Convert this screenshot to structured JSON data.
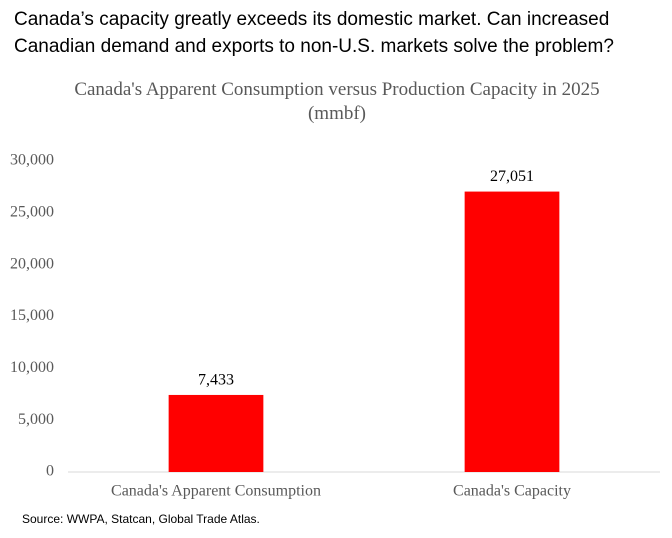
{
  "headline": "Canada’s capacity greatly exceeds its domestic market.  Can increased Canadian demand and exports to non-U.S. markets solve the problem?",
  "source": "Source:  WWPA, Statcan, Global Trade Atlas.",
  "chart_data": {
    "type": "bar",
    "title": "Canada's Apparent Consumption versus Production Capacity in 2025",
    "subtitle": "(mmbf)",
    "categories": [
      "Canada's Apparent Consumption",
      "Canada's Capacity"
    ],
    "values": [
      7433,
      27051
    ],
    "value_labels": [
      "7,433",
      "27,051"
    ],
    "color": "#ff0000",
    "ylim": [
      0,
      30000
    ],
    "yticks": [
      0,
      {
        "value": 5000,
        "label": "5,000"
      },
      {
        "value": 10000,
        "label": "10,000"
      },
      {
        "value": 15000,
        "label": "15,000"
      },
      {
        "value": 20000,
        "label": "20,000"
      },
      {
        "value": 25000,
        "label": "25,000"
      },
      {
        "value": 30000,
        "label": "30,000"
      }
    ],
    "grid": false
  }
}
